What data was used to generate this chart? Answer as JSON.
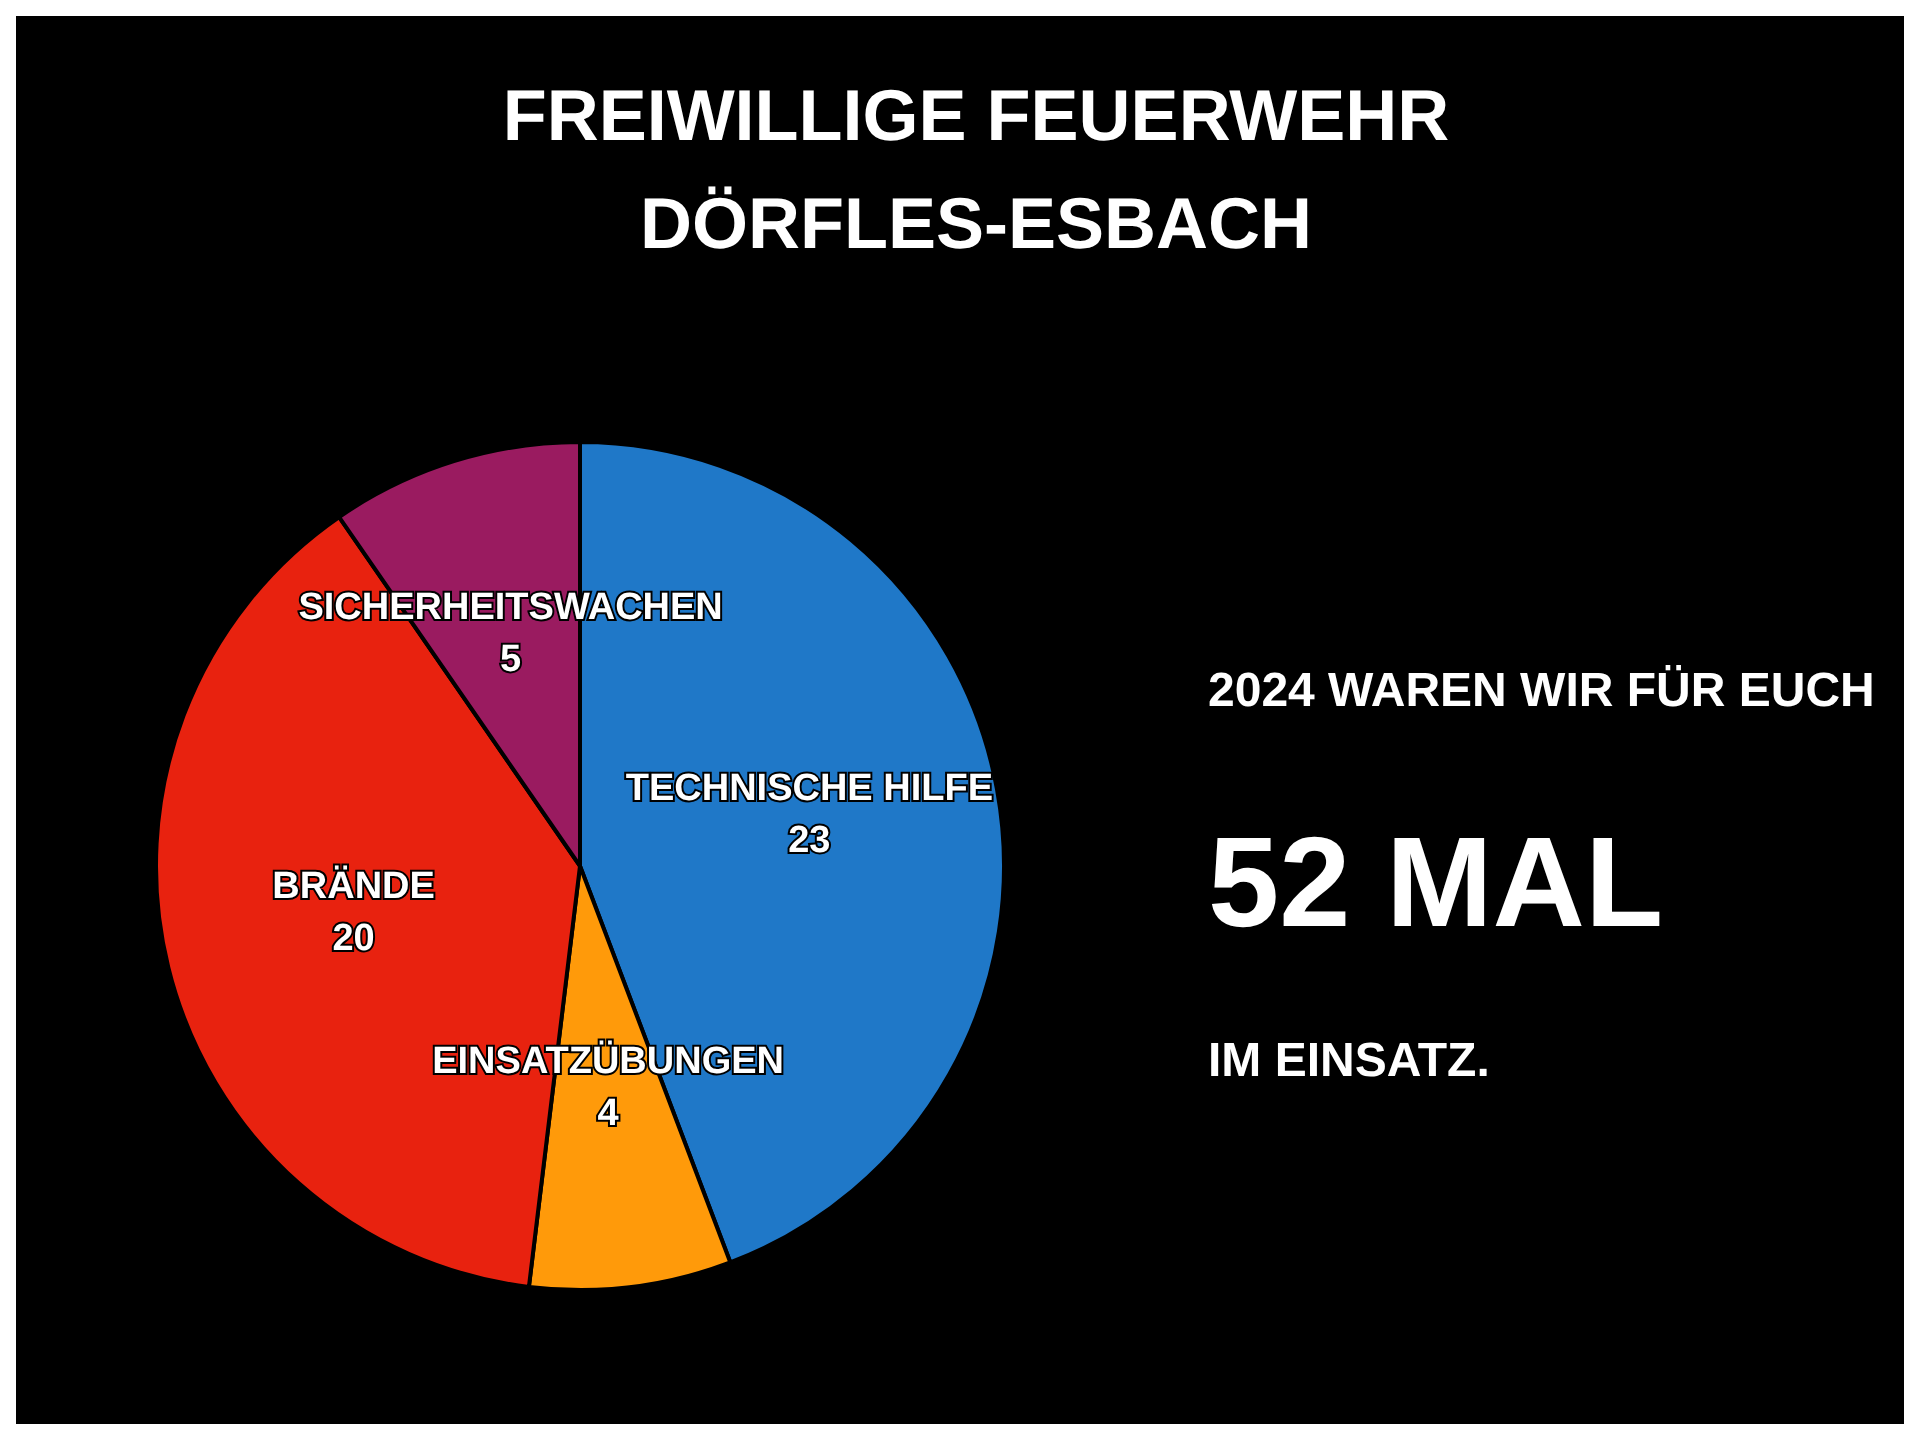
{
  "chart_data": {
    "type": "pie",
    "title": "FREIWILLIGE FEUERWEHR",
    "subtitle": "DÖRFLES-ESBACH",
    "categories": [
      "TECHNISCHE HILFE",
      "EINSATZÜBUNGEN",
      "BRÄNDE",
      "SICHERHEITSWACHEN"
    ],
    "values": [
      23,
      4,
      20,
      5
    ],
    "colors": [
      "#1f78c8",
      "#ff9a0a",
      "#e8220f",
      "#9a1b60"
    ],
    "data_labels": true,
    "annotations": [
      "2024 WAREN WIR FÜR EUCH",
      "52 MAL",
      "IM EINSATZ."
    ]
  }
}
